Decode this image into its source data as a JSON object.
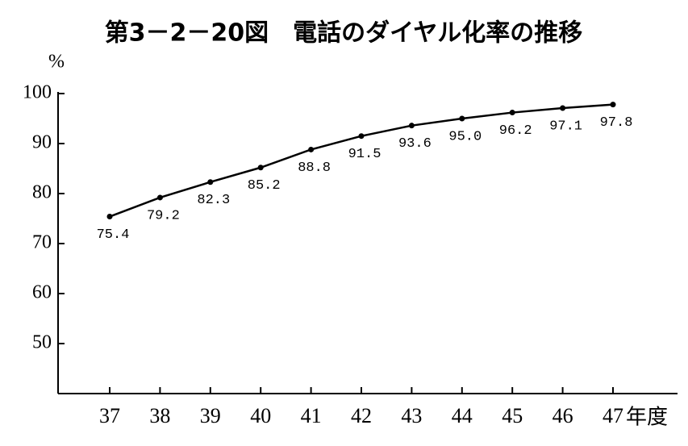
{
  "chart_data": {
    "type": "line",
    "title": "第3－2－20図　電話のダイヤル化率の推移",
    "y_label": "%",
    "x_label": "年度",
    "categories": [
      "37",
      "38",
      "39",
      "40",
      "41",
      "42",
      "43",
      "44",
      "45",
      "46",
      "47"
    ],
    "values": [
      75.4,
      79.2,
      82.3,
      85.2,
      88.8,
      91.5,
      93.6,
      95.0,
      96.2,
      97.1,
      97.8
    ],
    "value_labels": [
      "75.4",
      "79.2",
      "82.3",
      "85.2",
      "88.8",
      "91.5",
      "93.6",
      "95.0",
      "96.2",
      "97.1",
      "97.8"
    ],
    "color": "#000000",
    "ylim": [
      40,
      100
    ],
    "yticks": [
      50,
      60,
      70,
      80,
      90,
      100
    ]
  }
}
